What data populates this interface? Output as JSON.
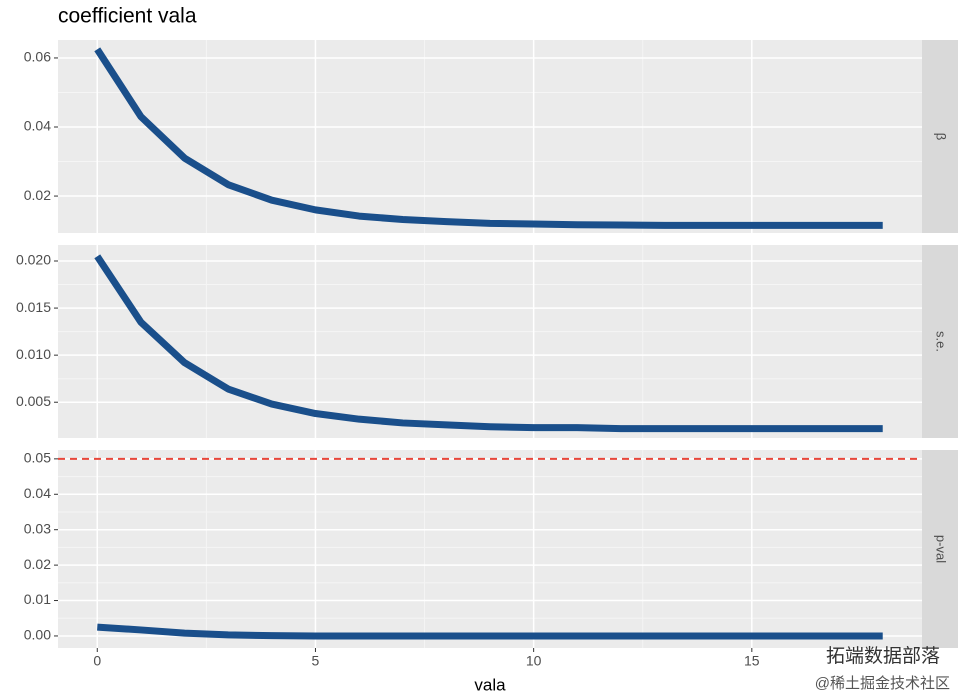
{
  "chart_data": [
    {
      "type": "line",
      "title": "coefficient vala",
      "panel_label": "β",
      "x": [
        0,
        1,
        2,
        3,
        4,
        5,
        6,
        7,
        8,
        9,
        10,
        11,
        12,
        13,
        14,
        15,
        16,
        17,
        18
      ],
      "series": [
        {
          "color": "#1a4f8b",
          "values": [
            0.0625,
            0.043,
            0.031,
            0.0233,
            0.0188,
            0.016,
            0.0142,
            0.0132,
            0.0126,
            0.0121,
            0.0119,
            0.0117,
            0.0116,
            0.0115,
            0.0115,
            0.0115,
            0.0115,
            0.0115,
            0.0115
          ]
        }
      ],
      "xlim": [
        -0.9,
        18.9
      ],
      "xticks": [
        0,
        5,
        10,
        15
      ],
      "ylim": [
        0.0093,
        0.0652
      ],
      "yticks": [
        0.02,
        0.04,
        0.06
      ]
    },
    {
      "type": "line",
      "panel_label": "s.e.",
      "x": [
        0,
        1,
        2,
        3,
        4,
        5,
        6,
        7,
        8,
        9,
        10,
        11,
        12,
        13,
        14,
        15,
        16,
        17,
        18
      ],
      "series": [
        {
          "color": "#1a4f8b",
          "values": [
            0.0205,
            0.0135,
            0.0092,
            0.0064,
            0.0048,
            0.0038,
            0.0032,
            0.0028,
            0.0026,
            0.0024,
            0.0023,
            0.0023,
            0.0022,
            0.0022,
            0.0022,
            0.0022,
            0.0022,
            0.0022,
            0.0022
          ]
        }
      ],
      "xlim": [
        -0.9,
        18.9
      ],
      "xticks": [
        0,
        5,
        10,
        15
      ],
      "ylim": [
        0.0012,
        0.0217
      ],
      "yticks": [
        0.005,
        {
          "value": 0.01,
          "label": "0.010"
        },
        0.015,
        {
          "value": 0.02,
          "label": "0.020"
        }
      ]
    },
    {
      "type": "line",
      "panel_label": "p-val",
      "xlabel": "vala",
      "hline": 0.05,
      "hline_color": "#e8473b",
      "x": [
        0,
        1,
        2,
        3,
        4,
        5,
        6,
        7,
        8,
        9,
        10,
        11,
        12,
        13,
        14,
        15,
        16,
        17,
        18
      ],
      "series": [
        {
          "color": "#1a4f8b",
          "values": [
            0.0025,
            0.0017,
            0.0008,
            0.0003,
            0.0001,
            0,
            0,
            0,
            0,
            0,
            0,
            0,
            0,
            0,
            0,
            0,
            0,
            0,
            0
          ]
        }
      ],
      "xlim": [
        -0.9,
        18.9
      ],
      "xticks": [
        0,
        5,
        10,
        15
      ],
      "ylim": [
        -0.0034,
        0.0525
      ],
      "yticks": [
        {
          "value": 0,
          "label": "0.00"
        },
        0.01,
        0.02,
        0.03,
        0.04,
        0.05
      ]
    }
  ],
  "watermark": {
    "brand": "拓端数据部落",
    "site": "@稀土掘金技术社区"
  }
}
